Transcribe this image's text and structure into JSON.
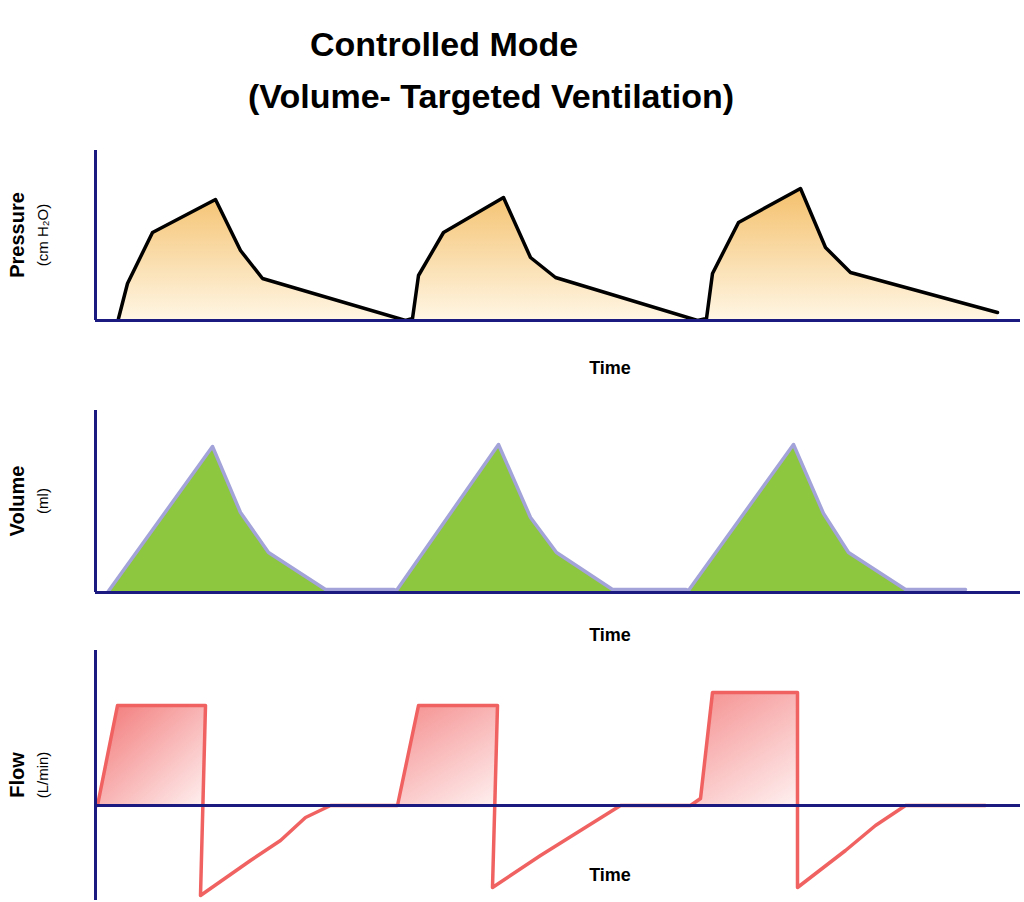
{
  "chart_data": [
    {
      "type": "line",
      "title": "Controlled Mode",
      "subtitle": "(Volume- Targeted Ventilation)",
      "xlabel": "Time",
      "ylabel": "Pressure (cm H₂O)",
      "x": [
        2.3,
        3.2,
        5.7,
        12,
        14.5,
        16.7,
        31,
        31.7,
        32.3,
        34.8,
        40.8,
        43.5,
        46,
        60.2,
        61.1,
        61.7,
        64.3,
        70.5,
        73,
        75.5,
        90.2
      ],
      "values": [
        2,
        37,
        88,
        121,
        70,
        42,
        0,
        2,
        45,
        88,
        123,
        63,
        43,
        0,
        2,
        47,
        98,
        132,
        73,
        48,
        8
      ],
      "color": "#000000",
      "xlim": [
        0,
        92.5
      ],
      "ylim": [
        0,
        170
      ],
      "grid": false,
      "tick_labels": false
    },
    {
      "type": "line",
      "xlabel": "Time",
      "ylabel": "Volume (ml)",
      "x": [
        1.2,
        11.7,
        14.5,
        17.3,
        23,
        29.8,
        30.1,
        40.3,
        43.5,
        46.1,
        51.7,
        59,
        59.3,
        69.8,
        72.8,
        75.3,
        81,
        87
      ],
      "values": [
        0,
        146,
        80,
        40,
        3,
        3,
        2,
        148,
        75,
        40,
        3,
        3,
        2,
        148,
        79,
        40,
        3,
        3
      ],
      "color": "#a3a3d9",
      "xlim": [
        0,
        92.5
      ],
      "ylim": [
        0,
        182
      ],
      "grid": false,
      "tick_labels": false
    },
    {
      "type": "line",
      "xlabel": "Time",
      "ylabel": "Flow (L/min)",
      "x": [
        0.2,
        2.2,
        11,
        10.5,
        15.5,
        18.5,
        21,
        23.5,
        29.5,
        30.2,
        32.3,
        40.2,
        39.7,
        44.5,
        48.5,
        52.5,
        59.5,
        60.5,
        61.7,
        70.2,
        70.2,
        75,
        78,
        81,
        89
      ],
      "values": [
        0,
        100,
        100,
        -90,
        -55,
        -35,
        -12,
        0,
        0,
        0,
        100,
        100,
        -82,
        -50,
        -25,
        0,
        0,
        7,
        113,
        113,
        -82,
        -45,
        -20,
        0,
        0
      ],
      "color": "#f06262",
      "xlim": [
        0,
        92.5
      ],
      "ylim": [
        -95,
        155
      ],
      "grid": false,
      "tick_labels": false
    }
  ]
}
